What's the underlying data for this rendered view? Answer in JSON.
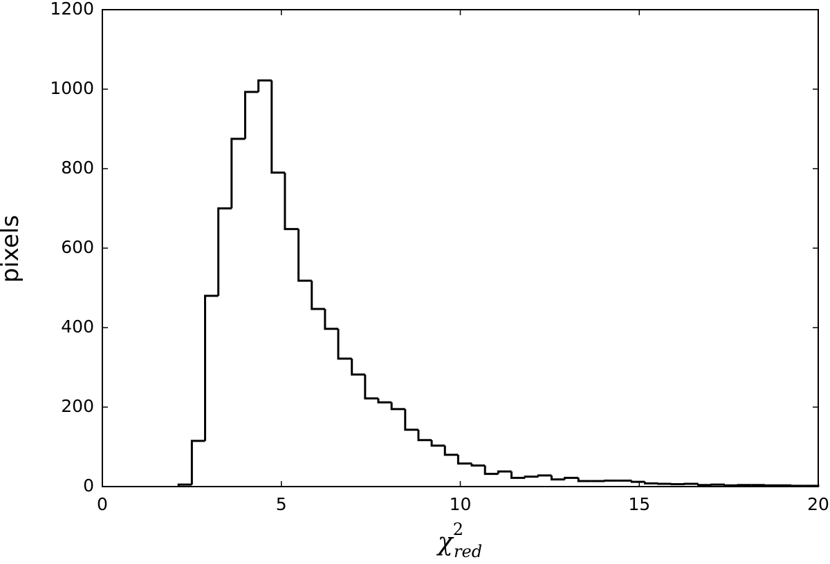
{
  "chart_data": {
    "type": "histogram",
    "xlabel": {
      "base": "χ",
      "sup": "2",
      "sub": "red"
    },
    "ylabel": "pixels",
    "bins": [
      2.13,
      2.5,
      2.87,
      3.24,
      3.61,
      3.99,
      4.36,
      4.73,
      5.1,
      5.48,
      5.85,
      6.22,
      6.59,
      6.97,
      7.34,
      7.71,
      8.08,
      8.46,
      8.83,
      9.2,
      9.57,
      9.94,
      10.32,
      10.69,
      11.06,
      11.43,
      11.81,
      12.18,
      12.55,
      12.92,
      13.3,
      13.67,
      14.04,
      14.41,
      14.79,
      15.16,
      15.53,
      15.9,
      16.27,
      16.65,
      17.02,
      17.39,
      17.76,
      18.14,
      18.51,
      18.88,
      19.25,
      19.63,
      20.0
    ],
    "values": [
      5,
      115,
      480,
      700,
      875,
      993,
      1022,
      790,
      648,
      518,
      447,
      397,
      322,
      282,
      222,
      212,
      195,
      143,
      117,
      103,
      80,
      58,
      53,
      32,
      38,
      22,
      25,
      28,
      18,
      22,
      14,
      14,
      15,
      15,
      12,
      8,
      7,
      6,
      7,
      4,
      5,
      3,
      4,
      4,
      3,
      3,
      2,
      2
    ],
    "color": "#000000",
    "xlim": [
      0,
      20
    ],
    "xticks": [
      0,
      5,
      10,
      15,
      20
    ],
    "ylim": [
      0,
      1200
    ],
    "yticks": [
      0,
      200,
      400,
      600,
      800,
      1000,
      1200
    ],
    "grid": false
  }
}
